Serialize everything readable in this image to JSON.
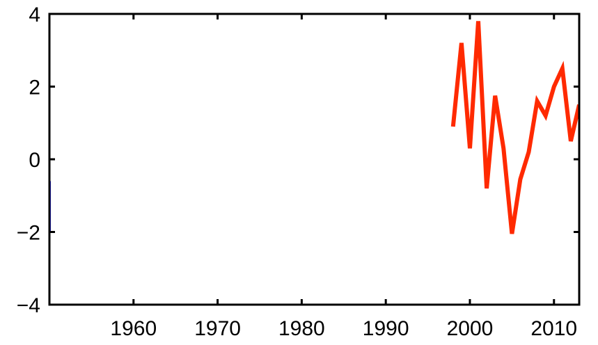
{
  "chart_data": {
    "type": "line",
    "title": "",
    "xlabel": "",
    "ylabel": "",
    "xlim": [
      1950,
      2013
    ],
    "ylim": [
      -4,
      4
    ],
    "x_ticks": [
      1960,
      1970,
      1980,
      1990,
      2000,
      2010
    ],
    "x_tick_labels": [
      "1960",
      "1970",
      "1980",
      "1990",
      "2000",
      "2010"
    ],
    "y_ticks": [
      4,
      2,
      0,
      -2,
      -4
    ],
    "y_tick_labels": [
      "4",
      "2",
      "0",
      "−2",
      "−4"
    ],
    "grid": false,
    "legend": "none",
    "series": [
      {
        "color": "#1a1aff",
        "x": [
          1950.0,
          1950.0
        ],
        "y": [
          -0.6,
          -2.0
        ]
      },
      {
        "color": "#ff2a00",
        "x": [
          1998,
          1999,
          2000,
          2001,
          2002,
          2003,
          2004,
          2005,
          2006,
          2007,
          2008,
          2009,
          2010,
          2011,
          2012,
          2013
        ],
        "y": [
          0.9,
          3.2,
          0.3,
          3.8,
          -0.8,
          1.75,
          0.3,
          -2.05,
          -0.55,
          0.2,
          1.6,
          1.2,
          2.0,
          2.5,
          0.5,
          1.5
        ]
      }
    ]
  }
}
